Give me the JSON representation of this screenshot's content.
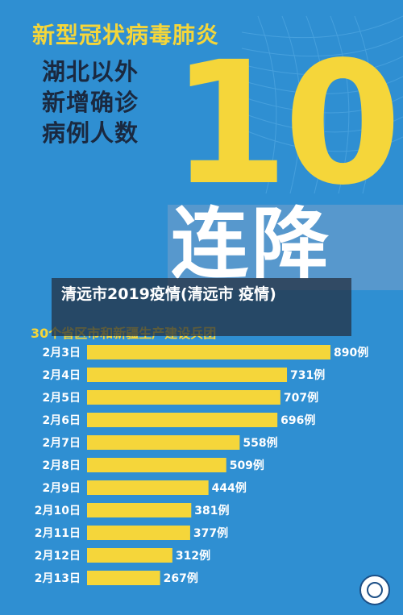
{
  "poster": {
    "headline": "新型冠状病毒肺炎",
    "sub_lines": [
      "湖北以外",
      "新增确诊",
      "病例人数"
    ],
    "big_number": "10",
    "big_text": "连降",
    "overlay_title": "清远市2019疫情(清远市 疫情)",
    "subtitle": "30个省区市和新疆生产建设兵团"
  },
  "colors": {
    "background": "#2f8fd2",
    "accent": "#f5d63a",
    "bar": "#f5d63a",
    "text_dark": "#1a2940",
    "text_light": "#ffffff"
  },
  "chart_data": {
    "type": "bar",
    "orientation": "horizontal",
    "categories": [
      "2月3日",
      "2月4日",
      "2月5日",
      "2月6日",
      "2月7日",
      "2月8日",
      "2月9日",
      "2月10日",
      "2月11日",
      "2月12日",
      "2月13日"
    ],
    "values": [
      890,
      731,
      707,
      696,
      558,
      509,
      444,
      381,
      377,
      312,
      267
    ],
    "value_labels": [
      "890例",
      "731例",
      "707例",
      "696例",
      "558例",
      "509例",
      "444例",
      "381例",
      "377例",
      "312例",
      "267例"
    ],
    "xlim": [
      0,
      890
    ],
    "grid": false,
    "legend": "none"
  }
}
